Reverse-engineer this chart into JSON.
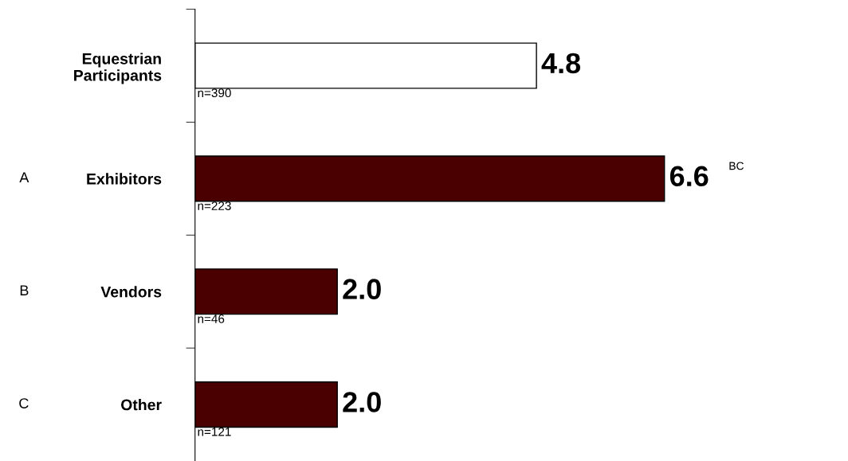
{
  "chart_data": {
    "type": "bar",
    "orientation": "horizontal",
    "categories": [
      "Equestrian\nParticipants",
      "Exhibitors",
      "Vendors",
      "Other"
    ],
    "values": [
      4.8,
      6.6,
      2.0,
      2.0
    ],
    "value_labels": [
      "4.8",
      "6.6",
      "2.0",
      "2.0"
    ],
    "colors": [
      "#ffffff",
      "#4a0000",
      "#4a0000",
      "#4a0000"
    ],
    "grid": false,
    "tick_labels": "y",
    "annotations": [
      "n=390",
      "n=223",
      "n=46",
      "n=121",
      "A",
      "B",
      "C",
      "BC"
    ]
  }
}
